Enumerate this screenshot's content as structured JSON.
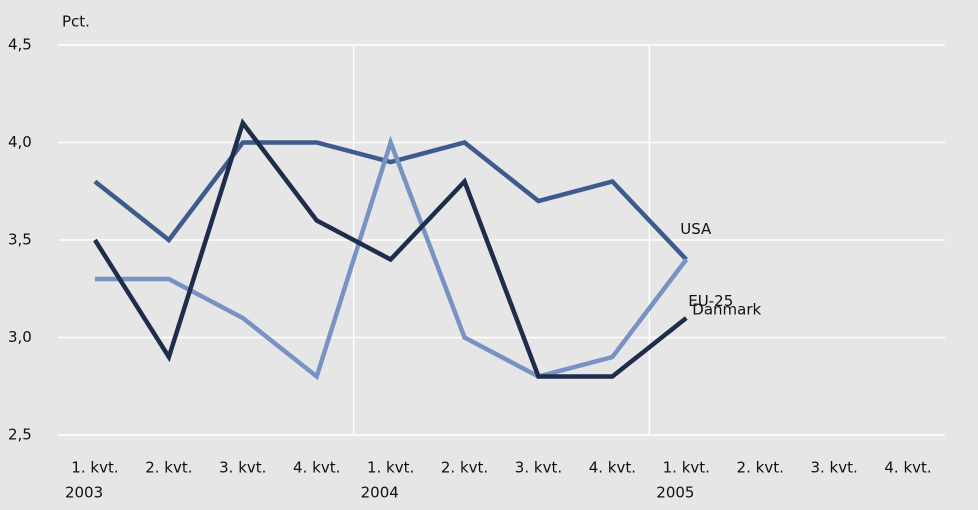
{
  "chart_data": {
    "type": "line",
    "y_label": "Pct.",
    "categories": [
      "1. kvt.",
      "2. kvt.",
      "3. kvt.",
      "4. kvt.",
      "1. kvt.",
      "2. kvt.",
      "3. kvt.",
      "4. kvt.",
      "1. kvt.",
      "2. kvt.",
      "3. kvt.",
      "4. kvt."
    ],
    "years": [
      "2003",
      null,
      null,
      null,
      "2004",
      null,
      null,
      null,
      "2005",
      null,
      null,
      null
    ],
    "series": [
      {
        "name": "USA",
        "color": "#3d5b8c",
        "values": [
          3.8,
          3.5,
          4.0,
          4.0,
          3.9,
          4.0,
          3.7,
          3.8,
          3.4,
          null,
          null,
          null
        ]
      },
      {
        "name": "EU-25",
        "color": "#7893c3",
        "values": [
          3.3,
          3.3,
          3.1,
          2.8,
          4.0,
          3.0,
          2.8,
          2.9,
          3.4,
          null,
          null,
          null
        ]
      },
      {
        "name": "Danmark",
        "color": "#1e2d4b",
        "values": [
          3.5,
          2.9,
          4.1,
          3.6,
          3.4,
          3.8,
          2.8,
          2.8,
          3.1,
          null,
          null,
          null
        ]
      }
    ],
    "ylim": [
      2.5,
      4.5
    ],
    "yticks": [
      {
        "value": 2.5,
        "label": "2,5"
      },
      {
        "value": 3.0,
        "label": "3,0"
      },
      {
        "value": 3.5,
        "label": "3,5"
      },
      {
        "value": 4.0,
        "label": "4,0"
      },
      {
        "value": 4.5,
        "label": "4,5"
      }
    ],
    "grid": true
  }
}
